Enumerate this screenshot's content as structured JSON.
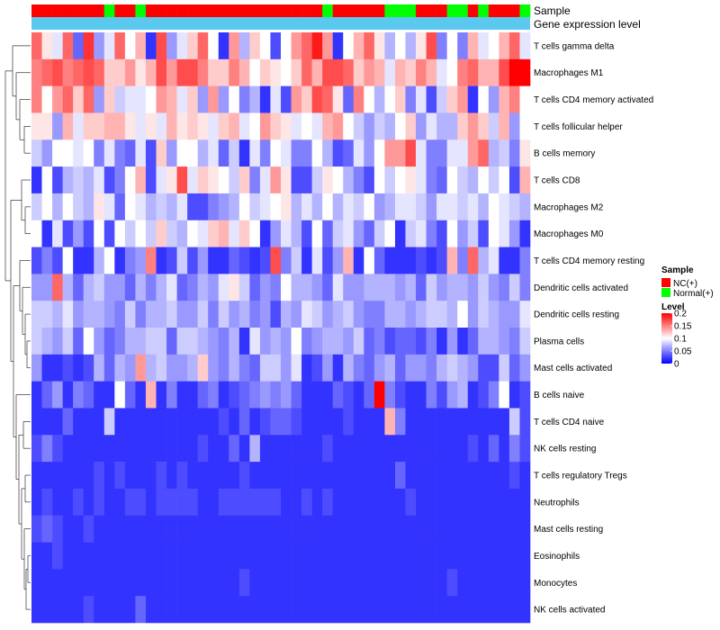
{
  "chart_data": {
    "type": "heatmap",
    "title": "",
    "rows": [
      "T cells gamma delta",
      "Macrophages M1",
      "T cells CD4 memory activated",
      "T cells follicular helper",
      "B cells memory",
      "T cells CD8",
      "Macrophages M2",
      "Macrophages M0",
      "T cells CD4 memory resting",
      "Dendritic cells activated",
      "Dendritic cells resting",
      "Plasma cells",
      "Mast cells activated",
      "B cells naive",
      "T cells CD4 naive",
      "NK cells resting",
      "T cells regulatory  Tregs",
      "Neutrophils",
      "Mast cells resting",
      "Eosinophils",
      "Monocytes",
      "NK cells activated"
    ],
    "sample_groups": [
      "NC",
      "NC",
      "NC",
      "NC",
      "NC",
      "NC",
      "NC",
      "Normal",
      "NC",
      "NC",
      "Normal",
      "NC",
      "NC",
      "NC",
      "NC",
      "NC",
      "NC",
      "NC",
      "NC",
      "NC",
      "NC",
      "NC",
      "NC",
      "NC",
      "NC",
      "NC",
      "NC",
      "NC",
      "Normal",
      "NC",
      "NC",
      "NC",
      "NC",
      "NC",
      "Normal",
      "Normal",
      "Normal",
      "NC",
      "NC",
      "NC",
      "Normal",
      "Normal",
      "NC",
      "Normal",
      "NC",
      "NC",
      "NC",
      "Normal"
    ],
    "values": [
      [
        0.16,
        0.11,
        0.09,
        0.16,
        0.04,
        0.18,
        0.06,
        0.09,
        0.16,
        0.1,
        0.13,
        0.02,
        0.17,
        0.06,
        0.09,
        0.12,
        0.16,
        0.1,
        0.02,
        0.14,
        0.07,
        0.12,
        0.1,
        0.03,
        0.1,
        0.14,
        0.16,
        0.19,
        0.14,
        0.02,
        0.1,
        0.13,
        0.16,
        0.11,
        0.07,
        0.1,
        0.07,
        0.11,
        0.17,
        0.05,
        0.1,
        0.05,
        0.13,
        0.09,
        0.1,
        0.13,
        0.16,
        0.09
      ],
      [
        0.15,
        0.16,
        0.17,
        0.15,
        0.16,
        0.17,
        0.16,
        0.12,
        0.12,
        0.14,
        0.11,
        0.13,
        0.17,
        0.14,
        0.17,
        0.17,
        0.15,
        0.12,
        0.12,
        0.15,
        0.13,
        0.1,
        0.12,
        0.11,
        0.1,
        0.12,
        0.16,
        0.13,
        0.17,
        0.17,
        0.16,
        0.12,
        0.14,
        0.13,
        0.09,
        0.13,
        0.12,
        0.15,
        0.13,
        0.09,
        0.1,
        0.15,
        0.16,
        0.13,
        0.13,
        0.17,
        0.2,
        0.2
      ],
      [
        0.15,
        0.1,
        0.14,
        0.16,
        0.12,
        0.16,
        0.06,
        0.12,
        0.08,
        0.09,
        0.09,
        0.1,
        0.14,
        0.13,
        0.09,
        0.12,
        0.06,
        0.14,
        0.06,
        0.1,
        0.05,
        0.07,
        0.02,
        0.09,
        0.03,
        0.14,
        0.12,
        0.17,
        0.16,
        0.11,
        0.04,
        0.15,
        0.1,
        0.07,
        0.1,
        0.12,
        0.05,
        0.09,
        0.03,
        0.08,
        0.12,
        0.14,
        0.02,
        0.1,
        0.06,
        0.13,
        0.15,
        0.1
      ],
      [
        0.11,
        0.11,
        0.06,
        0.13,
        0.09,
        0.12,
        0.12,
        0.13,
        0.13,
        0.11,
        0.09,
        0.11,
        0.09,
        0.13,
        0.11,
        0.12,
        0.11,
        0.09,
        0.12,
        0.13,
        0.09,
        0.1,
        0.14,
        0.12,
        0.11,
        0.09,
        0.1,
        0.09,
        0.13,
        0.14,
        0.1,
        0.08,
        0.06,
        0.08,
        0.07,
        0.1,
        0.12,
        0.06,
        0.09,
        0.07,
        0.07,
        0.12,
        0.14,
        0.12,
        0.08,
        0.13,
        0.06,
        0.1
      ],
      [
        0.08,
        0.06,
        0.1,
        0.1,
        0.09,
        0.1,
        0.05,
        0.09,
        0.05,
        0.04,
        0.09,
        0.03,
        0.12,
        0.06,
        0.1,
        0.1,
        0.07,
        0.09,
        0.04,
        0.08,
        0.02,
        0.09,
        0.05,
        0.1,
        0.09,
        0.05,
        0.05,
        0.1,
        0.07,
        0.03,
        0.04,
        0.09,
        0.06,
        0.1,
        0.14,
        0.14,
        0.17,
        0.09,
        0.05,
        0.05,
        0.09,
        0.09,
        0.14,
        0.16,
        0.07,
        0.08,
        0.05,
        0.11
      ],
      [
        0.02,
        0.1,
        0.03,
        0.07,
        0.08,
        0.07,
        0.09,
        0.03,
        0.05,
        0.1,
        0.13,
        0.03,
        0.09,
        0.11,
        0.17,
        0.09,
        0.12,
        0.11,
        0.1,
        0.08,
        0.12,
        0.05,
        0.09,
        0.14,
        0.11,
        0.03,
        0.03,
        0.08,
        0.11,
        0.1,
        0.07,
        0.05,
        0.03,
        0.1,
        0.08,
        0.1,
        0.11,
        0.09,
        0.05,
        0.04,
        0.1,
        0.08,
        0.07,
        0.1,
        0.08,
        0.1,
        0.03,
        0.13
      ],
      [
        0.08,
        0.1,
        0.07,
        0.1,
        0.08,
        0.07,
        0.11,
        0.09,
        0.04,
        0.1,
        0.09,
        0.07,
        0.08,
        0.07,
        0.09,
        0.03,
        0.03,
        0.05,
        0.06,
        0.07,
        0.1,
        0.08,
        0.09,
        0.1,
        0.11,
        0.07,
        0.09,
        0.07,
        0.1,
        0.07,
        0.09,
        0.08,
        0.1,
        0.06,
        0.07,
        0.09,
        0.09,
        0.08,
        0.06,
        0.09,
        0.09,
        0.08,
        0.09,
        0.07,
        0.1,
        0.09,
        0.08,
        0.07
      ],
      [
        0.1,
        0.02,
        0.09,
        0.03,
        0.06,
        0.03,
        0.1,
        0.03,
        0.1,
        0.08,
        0.1,
        0.08,
        0.12,
        0.08,
        0.07,
        0.1,
        0.09,
        0.12,
        0.13,
        0.09,
        0.12,
        0.1,
        0.02,
        0.06,
        0.09,
        0.07,
        0.03,
        0.1,
        0.04,
        0.08,
        0.09,
        0.06,
        0.04,
        0.08,
        0.1,
        0.02,
        0.08,
        0.09,
        0.05,
        0.03,
        0.1,
        0.06,
        0.08,
        0.03,
        0.1,
        0.09,
        0.06,
        0.02
      ],
      [
        0.03,
        0.05,
        0.03,
        0.1,
        0.02,
        0.02,
        0.07,
        0.1,
        0.02,
        0.05,
        0.06,
        0.15,
        0.02,
        0.03,
        0.08,
        0.03,
        0.06,
        0.02,
        0.02,
        0.04,
        0.03,
        0.02,
        0.03,
        0.17,
        0.05,
        0.08,
        0.02,
        0.09,
        0.03,
        0.06,
        0.13,
        0.02,
        0.1,
        0.04,
        0.02,
        0.02,
        0.02,
        0.03,
        0.02,
        0.03,
        0.13,
        0.05,
        0.16,
        0.07,
        0.09,
        0.02,
        0.02,
        0.05
      ],
      [
        0.06,
        0.06,
        0.16,
        0.07,
        0.04,
        0.07,
        0.08,
        0.06,
        0.06,
        0.04,
        0.07,
        0.05,
        0.07,
        0.09,
        0.04,
        0.05,
        0.07,
        0.06,
        0.09,
        0.11,
        0.08,
        0.04,
        0.06,
        0.05,
        0.1,
        0.07,
        0.07,
        0.06,
        0.04,
        0.09,
        0.06,
        0.06,
        0.07,
        0.07,
        0.07,
        0.06,
        0.07,
        0.04,
        0.08,
        0.06,
        0.07,
        0.07,
        0.06,
        0.08,
        0.06,
        0.05,
        0.08,
        0.05
      ],
      [
        0.08,
        0.08,
        0.07,
        0.09,
        0.06,
        0.07,
        0.07,
        0.06,
        0.05,
        0.08,
        0.05,
        0.07,
        0.07,
        0.08,
        0.06,
        0.06,
        0.08,
        0.05,
        0.08,
        0.06,
        0.07,
        0.05,
        0.06,
        0.03,
        0.07,
        0.06,
        0.09,
        0.08,
        0.06,
        0.07,
        0.08,
        0.06,
        0.05,
        0.05,
        0.07,
        0.07,
        0.06,
        0.07,
        0.08,
        0.08,
        0.07,
        0.1,
        0.06,
        0.08,
        0.07,
        0.06,
        0.06,
        0.09
      ],
      [
        0.08,
        0.07,
        0.06,
        0.08,
        0.04,
        0.1,
        0.06,
        0.04,
        0.05,
        0.07,
        0.07,
        0.08,
        0.08,
        0.04,
        0.08,
        0.08,
        0.07,
        0.06,
        0.05,
        0.07,
        0.02,
        0.09,
        0.06,
        0.07,
        0.06,
        0.1,
        0.05,
        0.06,
        0.07,
        0.07,
        0.06,
        0.08,
        0.04,
        0.05,
        0.03,
        0.04,
        0.04,
        0.03,
        0.05,
        0.02,
        0.06,
        0.02,
        0.04,
        0.07,
        0.07,
        0.06,
        0.05,
        0.08
      ],
      [
        0.06,
        0.02,
        0.02,
        0.03,
        0.02,
        0.03,
        0.07,
        0.04,
        0.07,
        0.06,
        0.14,
        0.07,
        0.08,
        0.06,
        0.06,
        0.07,
        0.12,
        0.06,
        0.05,
        0.07,
        0.05,
        0.04,
        0.08,
        0.08,
        0.06,
        0.09,
        0.02,
        0.03,
        0.06,
        0.02,
        0.07,
        0.05,
        0.04,
        0.06,
        0.07,
        0.04,
        0.06,
        0.06,
        0.05,
        0.07,
        0.08,
        0.07,
        0.06,
        0.03,
        0.03,
        0.08,
        0.04,
        0.06
      ],
      [
        0.02,
        0.04,
        0.06,
        0.02,
        0.05,
        0.04,
        0.02,
        0.02,
        0.1,
        0.04,
        0.02,
        0.13,
        0.02,
        0.05,
        0.02,
        0.02,
        0.04,
        0.05,
        0.02,
        0.03,
        0.04,
        0.05,
        0.06,
        0.05,
        0.06,
        0.04,
        0.02,
        0.02,
        0.02,
        0.04,
        0.03,
        0.02,
        0.04,
        0.2,
        0.05,
        0.03,
        0.02,
        0.02,
        0.05,
        0.03,
        0.06,
        0.07,
        0.02,
        0.03,
        0.05,
        0.1,
        0.02,
        0.03
      ],
      [
        0.02,
        0.02,
        0.02,
        0.04,
        0.02,
        0.02,
        0.02,
        0.08,
        0.02,
        0.02,
        0.02,
        0.02,
        0.02,
        0.02,
        0.02,
        0.02,
        0.02,
        0.02,
        0.03,
        0.02,
        0.04,
        0.02,
        0.03,
        0.04,
        0.04,
        0.03,
        0.02,
        0.02,
        0.02,
        0.02,
        0.03,
        0.02,
        0.02,
        0.02,
        0.13,
        0.05,
        0.02,
        0.02,
        0.02,
        0.02,
        0.02,
        0.02,
        0.02,
        0.02,
        0.02,
        0.02,
        0.08,
        0.03
      ],
      [
        0.03,
        0.05,
        0.03,
        0.02,
        0.02,
        0.02,
        0.02,
        0.02,
        0.02,
        0.02,
        0.02,
        0.02,
        0.02,
        0.02,
        0.02,
        0.02,
        0.03,
        0.02,
        0.02,
        0.04,
        0.02,
        0.07,
        0.02,
        0.02,
        0.02,
        0.02,
        0.02,
        0.02,
        0.03,
        0.02,
        0.02,
        0.02,
        0.02,
        0.02,
        0.02,
        0.02,
        0.02,
        0.02,
        0.02,
        0.02,
        0.02,
        0.02,
        0.03,
        0.02,
        0.04,
        0.02,
        0.05,
        0.03
      ],
      [
        0.02,
        0.02,
        0.02,
        0.02,
        0.02,
        0.02,
        0.03,
        0.02,
        0.03,
        0.02,
        0.02,
        0.02,
        0.03,
        0.02,
        0.03,
        0.02,
        0.02,
        0.02,
        0.02,
        0.02,
        0.03,
        0.02,
        0.02,
        0.02,
        0.02,
        0.02,
        0.02,
        0.02,
        0.02,
        0.02,
        0.02,
        0.02,
        0.02,
        0.02,
        0.02,
        0.04,
        0.02,
        0.02,
        0.02,
        0.02,
        0.02,
        0.02,
        0.02,
        0.02,
        0.02,
        0.02,
        0.03,
        0.02
      ],
      [
        0.02,
        0.03,
        0.02,
        0.02,
        0.03,
        0.02,
        0.03,
        0.02,
        0.02,
        0.03,
        0.03,
        0.02,
        0.03,
        0.03,
        0.03,
        0.03,
        0.02,
        0.02,
        0.03,
        0.03,
        0.03,
        0.03,
        0.03,
        0.03,
        0.02,
        0.02,
        0.03,
        0.02,
        0.03,
        0.02,
        0.02,
        0.02,
        0.02,
        0.02,
        0.02,
        0.02,
        0.03,
        0.02,
        0.02,
        0.02,
        0.02,
        0.02,
        0.02,
        0.02,
        0.02,
        0.02,
        0.02,
        0.02
      ],
      [
        0.03,
        0.04,
        0.03,
        0.02,
        0.02,
        0.03,
        0.02,
        0.02,
        0.02,
        0.02,
        0.02,
        0.02,
        0.02,
        0.02,
        0.02,
        0.02,
        0.02,
        0.02,
        0.02,
        0.02,
        0.02,
        0.02,
        0.02,
        0.02,
        0.02,
        0.02,
        0.02,
        0.02,
        0.02,
        0.02,
        0.02,
        0.02,
        0.02,
        0.02,
        0.02,
        0.02,
        0.02,
        0.02,
        0.02,
        0.02,
        0.02,
        0.02,
        0.02,
        0.02,
        0.02,
        0.02,
        0.02,
        0.02
      ],
      [
        0.02,
        0.02,
        0.03,
        0.02,
        0.02,
        0.02,
        0.02,
        0.02,
        0.02,
        0.02,
        0.02,
        0.02,
        0.02,
        0.02,
        0.02,
        0.02,
        0.02,
        0.02,
        0.02,
        0.02,
        0.02,
        0.02,
        0.02,
        0.02,
        0.02,
        0.02,
        0.02,
        0.02,
        0.02,
        0.02,
        0.02,
        0.02,
        0.02,
        0.02,
        0.02,
        0.02,
        0.02,
        0.02,
        0.02,
        0.02,
        0.02,
        0.02,
        0.02,
        0.02,
        0.02,
        0.02,
        0.02,
        0.02
      ],
      [
        0.02,
        0.02,
        0.02,
        0.02,
        0.02,
        0.02,
        0.02,
        0.02,
        0.02,
        0.02,
        0.02,
        0.02,
        0.02,
        0.02,
        0.02,
        0.02,
        0.02,
        0.02,
        0.02,
        0.02,
        0.03,
        0.02,
        0.02,
        0.02,
        0.02,
        0.02,
        0.02,
        0.02,
        0.02,
        0.02,
        0.02,
        0.02,
        0.02,
        0.02,
        0.02,
        0.02,
        0.02,
        0.02,
        0.02,
        0.02,
        0.03,
        0.02,
        0.02,
        0.02,
        0.02,
        0.02,
        0.02,
        0.02
      ],
      [
        0.02,
        0.02,
        0.02,
        0.02,
        0.02,
        0.03,
        0.02,
        0.02,
        0.02,
        0.02,
        0.04,
        0.02,
        0.02,
        0.02,
        0.02,
        0.02,
        0.02,
        0.02,
        0.02,
        0.02,
        0.02,
        0.02,
        0.02,
        0.02,
        0.02,
        0.02,
        0.02,
        0.02,
        0.02,
        0.02,
        0.02,
        0.02,
        0.02,
        0.02,
        0.02,
        0.02,
        0.02,
        0.02,
        0.02,
        0.02,
        0.02,
        0.02,
        0.02,
        0.02,
        0.02,
        0.02,
        0.02,
        0.02
      ]
    ],
    "color_scale": {
      "low_color": "#0000FF",
      "mid_color": "#FFFFFF",
      "high_color": "#FF0000",
      "min": 0.0,
      "mid": 0.1,
      "max": 0.2
    },
    "annotations": {
      "sample_label": "Sample",
      "level_label": "Gene expression level",
      "level_bar_color": "#5BC8F0"
    },
    "legend": {
      "sample_title": "Sample",
      "sample_entries": [
        {
          "key": "NC",
          "label": "NC(+)",
          "color": "#FF0000"
        },
        {
          "key": "Normal",
          "label": "Normal(+)",
          "color": "#00FF00"
        }
      ],
      "level_title": "Level",
      "level_ticks": [
        "0.2",
        "0.15",
        "0.1",
        "0.05",
        "0"
      ],
      "level_tick_values": [
        0.2,
        0.15,
        0.1,
        0.05,
        0.0
      ]
    }
  }
}
